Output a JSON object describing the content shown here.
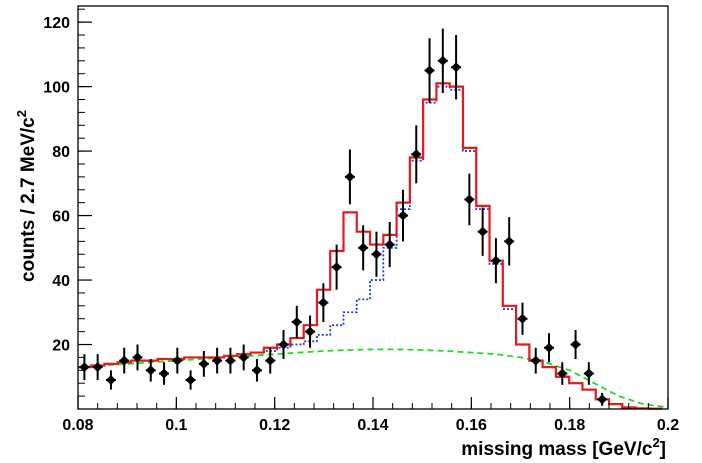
{
  "chart_data": {
    "type": "scatter",
    "xlabel": "missing mass [GeV/c",
    "xlabel_sup": "2",
    "xlabel_end": "]",
    "ylabel": "counts / 2.7 MeV/c",
    "ylabel_sup": "2",
    "xlim": [
      0.08,
      0.2
    ],
    "ylim": [
      0,
      125
    ],
    "x_ticks": [
      "0.08",
      "0.1",
      "0.12",
      "0.14",
      "0.16",
      "0.18",
      "0.2"
    ],
    "y_ticks": [
      "20",
      "40",
      "60",
      "80",
      "100",
      "120"
    ],
    "bin_width": 0.0027,
    "data_points": {
      "name": "",
      "color": "#000000",
      "x": [
        0.0813,
        0.084,
        0.0867,
        0.0894,
        0.0921,
        0.0948,
        0.0975,
        0.1002,
        0.1029,
        0.1056,
        0.1083,
        0.111,
        0.1137,
        0.1164,
        0.1191,
        0.1218,
        0.1245,
        0.1272,
        0.1299,
        0.1326,
        0.1353,
        0.138,
        0.1407,
        0.1434,
        0.1461,
        0.1488,
        0.1515,
        0.1542,
        0.1569,
        0.1596,
        0.1623,
        0.165,
        0.1677,
        0.1704,
        0.1731,
        0.1758,
        0.1785,
        0.1812,
        0.1839,
        0.1866
      ],
      "y": [
        13,
        13,
        9,
        15,
        16,
        12,
        11,
        15,
        9,
        14,
        15,
        15,
        16,
        12,
        15,
        20,
        27,
        24,
        33,
        44,
        72,
        50,
        48,
        51,
        60,
        79,
        105,
        108,
        106,
        65,
        55,
        46,
        52,
        28,
        15,
        19,
        11,
        20,
        11,
        3
      ],
      "err": [
        4,
        4,
        3,
        4,
        4,
        3.5,
        3.5,
        4,
        3,
        4,
        4,
        4,
        4,
        3.5,
        4,
        4.5,
        5,
        5,
        6,
        7,
        8.5,
        7,
        7,
        7,
        8,
        9,
        10,
        10,
        10,
        8,
        7.5,
        7,
        7.5,
        5,
        4,
        4.5,
        3.5,
        4.5,
        3.5,
        2
      ]
    },
    "series": [
      {
        "name": "",
        "style": "solid",
        "color": "#e41a1c",
        "edges": [
          0.08,
          0.0827,
          0.0854,
          0.0881,
          0.0908,
          0.0935,
          0.0962,
          0.0989,
          0.1016,
          0.1043,
          0.107,
          0.1097,
          0.1124,
          0.1151,
          0.1178,
          0.1205,
          0.1232,
          0.1259,
          0.1286,
          0.1313,
          0.134,
          0.1367,
          0.1394,
          0.1421,
          0.1448,
          0.1475,
          0.1502,
          0.1529,
          0.1556,
          0.1583,
          0.161,
          0.1637,
          0.1664,
          0.1691,
          0.1718,
          0.1745,
          0.1772,
          0.1799,
          0.1826,
          0.1853,
          0.188,
          0.1907,
          0.1934,
          0.1961,
          0.1988
        ],
        "values": [
          13,
          13.5,
          14,
          14.5,
          15,
          15,
          15.5,
          15.5,
          16,
          16,
          16,
          16.5,
          17,
          17.5,
          19,
          20,
          22,
          26,
          37,
          49,
          61,
          55,
          51,
          54,
          64,
          78,
          96,
          101,
          100,
          81,
          63,
          46,
          32,
          20,
          15,
          13,
          10,
          8,
          6,
          3,
          1.5,
          0.5,
          0.2,
          0.1
        ]
      },
      {
        "name": "",
        "style": "dotted",
        "color": "#1f3fd6",
        "edges": [
          0.08,
          0.0827,
          0.0854,
          0.0881,
          0.0908,
          0.0935,
          0.0962,
          0.0989,
          0.1016,
          0.1043,
          0.107,
          0.1097,
          0.1124,
          0.1151,
          0.1178,
          0.1205,
          0.1232,
          0.1259,
          0.1286,
          0.1313,
          0.134,
          0.1367,
          0.1394,
          0.1421,
          0.1448,
          0.1475,
          0.1502,
          0.1529,
          0.1556,
          0.1583,
          0.161,
          0.1637,
          0.1664,
          0.1691,
          0.1718,
          0.1745,
          0.1772,
          0.1799,
          0.1826,
          0.1853,
          0.188,
          0.1907,
          0.1934,
          0.1961,
          0.1988
        ],
        "values": [
          13,
          13.5,
          14,
          14.5,
          15,
          15,
          15.5,
          15.5,
          16,
          16,
          16,
          16.5,
          17,
          17.5,
          18,
          19,
          20,
          21,
          23,
          26,
          30,
          34,
          40,
          50,
          62,
          77,
          95,
          100,
          99,
          80,
          62,
          45,
          31,
          20,
          15,
          13,
          10,
          8,
          6,
          3,
          1.5,
          0.5,
          0.2,
          0.1
        ]
      },
      {
        "name": "",
        "style": "dashed",
        "color": "#22dd22",
        "x": [
          0.08,
          0.085,
          0.09,
          0.095,
          0.1,
          0.105,
          0.11,
          0.115,
          0.12,
          0.125,
          0.13,
          0.135,
          0.14,
          0.145,
          0.15,
          0.155,
          0.16,
          0.165,
          0.17,
          0.175,
          0.18,
          0.185,
          0.19,
          0.195,
          0.2
        ],
        "values": [
          13,
          13.5,
          14,
          14.5,
          15,
          15.5,
          16,
          16.5,
          17,
          17.5,
          18,
          18.3,
          18.5,
          18.5,
          18.3,
          18,
          17.5,
          17,
          16,
          14.5,
          12,
          8,
          4,
          1.5,
          0.5
        ]
      }
    ]
  }
}
